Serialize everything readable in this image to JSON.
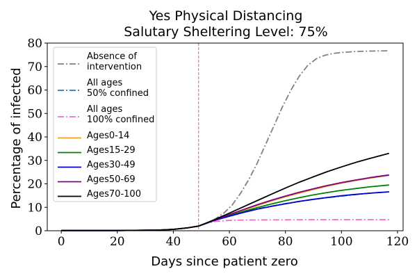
{
  "chart_data": {
    "type": "line",
    "title": "Yes Physical Distancing",
    "subtitle": "Salutary Sheltering Level: 75%",
    "xlabel": "Days since patient zero",
    "ylabel": "Percentage of infected",
    "xlim": [
      -5,
      122
    ],
    "ylim": [
      0,
      80
    ],
    "xticks": [
      0,
      20,
      40,
      60,
      80,
      100,
      120
    ],
    "yticks": [
      0,
      10,
      20,
      30,
      40,
      50,
      60,
      70,
      80
    ],
    "grid": false,
    "legend_position": "upper-left",
    "vline": {
      "x": 49,
      "color": "#e06666"
    },
    "series": [
      {
        "name": [
          "Absence of",
          "intervention"
        ],
        "color": "#808080",
        "style": "dashdot",
        "points": [
          [
            0,
            0.1
          ],
          [
            20,
            0.1
          ],
          [
            30,
            0.2
          ],
          [
            35,
            0.3
          ],
          [
            40,
            0.6
          ],
          [
            45,
            1.2
          ],
          [
            49,
            2.0
          ],
          [
            52,
            3.2
          ],
          [
            55,
            5.0
          ],
          [
            58,
            7.5
          ],
          [
            61,
            11
          ],
          [
            64,
            16
          ],
          [
            67,
            22
          ],
          [
            70,
            29
          ],
          [
            73,
            37
          ],
          [
            76,
            45
          ],
          [
            79,
            53
          ],
          [
            82,
            60
          ],
          [
            85,
            66
          ],
          [
            88,
            70.5
          ],
          [
            91,
            73.3
          ],
          [
            94,
            74.8
          ],
          [
            97,
            75.6
          ],
          [
            100,
            76
          ],
          [
            105,
            76.4
          ],
          [
            110,
            76.6
          ],
          [
            117,
            76.7
          ]
        ]
      },
      {
        "name": [
          "All ages",
          "50% confined"
        ],
        "color": "#1f77b4",
        "style": "dashdot",
        "points": [
          [
            0,
            0.1
          ],
          [
            20,
            0.1
          ],
          [
            30,
            0.2
          ],
          [
            35,
            0.3
          ],
          [
            40,
            0.6
          ],
          [
            45,
            1.2
          ],
          [
            49,
            2.0
          ],
          [
            52,
            3.3
          ],
          [
            55,
            4.6
          ],
          [
            60,
            6.3
          ],
          [
            65,
            7.9
          ],
          [
            70,
            9.3
          ],
          [
            75,
            10.5
          ],
          [
            80,
            11.6
          ],
          [
            85,
            12.5
          ],
          [
            90,
            13.4
          ],
          [
            95,
            14.1
          ],
          [
            100,
            14.8
          ],
          [
            105,
            15.4
          ],
          [
            110,
            16.0
          ],
          [
            117,
            16.6
          ]
        ]
      },
      {
        "name": [
          "All ages",
          "100% confined"
        ],
        "color": "#ee6ec4",
        "style": "dashdot",
        "points": [
          [
            0,
            0.1
          ],
          [
            20,
            0.1
          ],
          [
            30,
            0.2
          ],
          [
            35,
            0.3
          ],
          [
            40,
            0.6
          ],
          [
            45,
            1.2
          ],
          [
            49,
            2.0
          ],
          [
            52,
            3.2
          ],
          [
            55,
            4.0
          ],
          [
            60,
            4.4
          ],
          [
            65,
            4.55
          ],
          [
            70,
            4.6
          ],
          [
            80,
            4.65
          ],
          [
            90,
            4.7
          ],
          [
            100,
            4.7
          ],
          [
            110,
            4.7
          ],
          [
            117,
            4.7
          ]
        ]
      },
      {
        "name": "Ages0-14",
        "color": "#e8a317",
        "style": "solid",
        "points": [
          [
            0,
            0.1
          ],
          [
            20,
            0.1
          ],
          [
            30,
            0.2
          ],
          [
            35,
            0.3
          ],
          [
            40,
            0.6
          ],
          [
            45,
            1.2
          ],
          [
            49,
            2.0
          ],
          [
            52,
            3.3
          ],
          [
            55,
            4.7
          ],
          [
            60,
            6.8
          ],
          [
            65,
            8.8
          ],
          [
            70,
            10.8
          ],
          [
            75,
            12.7
          ],
          [
            80,
            14.5
          ],
          [
            85,
            16.1
          ],
          [
            90,
            17.6
          ],
          [
            95,
            19.0
          ],
          [
            100,
            20.3
          ],
          [
            105,
            21.4
          ],
          [
            110,
            22.4
          ],
          [
            117,
            23.6
          ]
        ]
      },
      {
        "name": "Ages15-29",
        "color": "#008000",
        "style": "solid",
        "points": [
          [
            0,
            0.1
          ],
          [
            20,
            0.1
          ],
          [
            30,
            0.2
          ],
          [
            35,
            0.3
          ],
          [
            40,
            0.6
          ],
          [
            45,
            1.2
          ],
          [
            49,
            2.0
          ],
          [
            52,
            3.3
          ],
          [
            55,
            4.6
          ],
          [
            60,
            6.5
          ],
          [
            65,
            8.2
          ],
          [
            70,
            9.9
          ],
          [
            75,
            11.4
          ],
          [
            80,
            12.8
          ],
          [
            85,
            14.1
          ],
          [
            90,
            15.3
          ],
          [
            95,
            16.3
          ],
          [
            100,
            17.2
          ],
          [
            105,
            18.0
          ],
          [
            110,
            18.7
          ],
          [
            117,
            19.5
          ]
        ]
      },
      {
        "name": "Ages30-49",
        "color": "#0000cd",
        "style": "solid",
        "points": [
          [
            0,
            0.1
          ],
          [
            20,
            0.1
          ],
          [
            30,
            0.2
          ],
          [
            35,
            0.3
          ],
          [
            40,
            0.6
          ],
          [
            45,
            1.2
          ],
          [
            49,
            2.0
          ],
          [
            52,
            3.3
          ],
          [
            55,
            4.5
          ],
          [
            60,
            6.2
          ],
          [
            65,
            7.8
          ],
          [
            70,
            9.2
          ],
          [
            75,
            10.4
          ],
          [
            80,
            11.5
          ],
          [
            85,
            12.5
          ],
          [
            90,
            13.4
          ],
          [
            95,
            14.2
          ],
          [
            100,
            14.9
          ],
          [
            105,
            15.5
          ],
          [
            110,
            16.0
          ],
          [
            117,
            16.6
          ]
        ]
      },
      {
        "name": "Ages50-69",
        "color": "#800080",
        "style": "solid",
        "points": [
          [
            0,
            0.1
          ],
          [
            20,
            0.1
          ],
          [
            30,
            0.2
          ],
          [
            35,
            0.3
          ],
          [
            40,
            0.6
          ],
          [
            45,
            1.2
          ],
          [
            49,
            2.0
          ],
          [
            52,
            3.3
          ],
          [
            55,
            4.7
          ],
          [
            60,
            6.9
          ],
          [
            65,
            9.0
          ],
          [
            70,
            11.1
          ],
          [
            75,
            13.0
          ],
          [
            80,
            14.8
          ],
          [
            85,
            16.4
          ],
          [
            90,
            17.9
          ],
          [
            95,
            19.3
          ],
          [
            100,
            20.5
          ],
          [
            105,
            21.6
          ],
          [
            110,
            22.6
          ],
          [
            117,
            23.8
          ]
        ]
      },
      {
        "name": "Ages70-100",
        "color": "#000000",
        "style": "solid",
        "points": [
          [
            0,
            0.1
          ],
          [
            20,
            0.1
          ],
          [
            30,
            0.2
          ],
          [
            35,
            0.3
          ],
          [
            40,
            0.6
          ],
          [
            45,
            1.2
          ],
          [
            49,
            2.0
          ],
          [
            52,
            3.4
          ],
          [
            55,
            4.9
          ],
          [
            60,
            7.5
          ],
          [
            65,
            10.2
          ],
          [
            70,
            12.9
          ],
          [
            75,
            15.6
          ],
          [
            80,
            18.2
          ],
          [
            85,
            20.7
          ],
          [
            90,
            23.0
          ],
          [
            95,
            25.2
          ],
          [
            100,
            27.2
          ],
          [
            105,
            29.1
          ],
          [
            110,
            30.8
          ],
          [
            117,
            33.0
          ]
        ]
      }
    ]
  }
}
